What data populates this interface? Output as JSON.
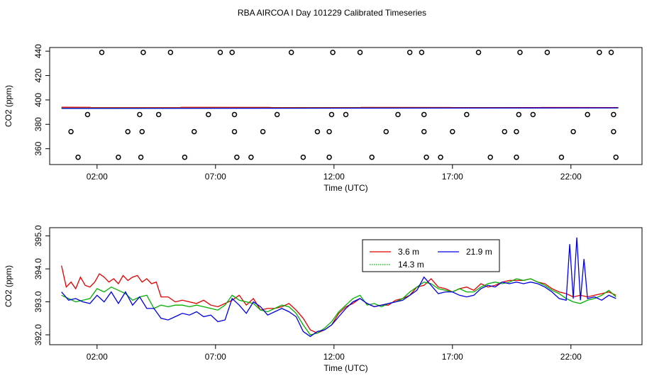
{
  "title": "RBA AIRCOA I  Day 101229  Calibrated Timeseries",
  "colors": {
    "3.6 m": "#e00000",
    "14.3 m": "#00b000",
    "21.9 m": "#0000e0",
    "frame": "#000000"
  },
  "chart_data": [
    {
      "type": "scatter+line",
      "xlabel": "Time (UTC)",
      "ylabel": "CO2 (ppm)",
      "xlim": [
        0.0,
        25.0
      ],
      "ylim": [
        347,
        443
      ],
      "xticks": [
        2,
        7,
        12,
        17,
        22
      ],
      "xtick_labels": [
        "02:00",
        "07:00",
        "12:00",
        "17:00",
        "22:00"
      ],
      "yticks": [
        360,
        380,
        400,
        420,
        440
      ],
      "yticks_labels": [
        "360",
        "380",
        "400",
        "420",
        "440"
      ],
      "calibration_points": [
        {
          "t": 1.2,
          "v": 353
        },
        {
          "t": 0.9,
          "v": 374
        },
        {
          "t": 1.6,
          "v": 388
        },
        {
          "t": 2.2,
          "v": 439
        },
        {
          "t": 2.9,
          "v": 353
        },
        {
          "t": 3.3,
          "v": 374
        },
        {
          "t": 3.8,
          "v": 388
        },
        {
          "t": 3.85,
          "v": 353
        },
        {
          "t": 3.95,
          "v": 439
        },
        {
          "t": 3.9,
          "v": 374
        },
        {
          "t": 4.6,
          "v": 388
        },
        {
          "t": 5.1,
          "v": 439
        },
        {
          "t": 5.7,
          "v": 353
        },
        {
          "t": 6.1,
          "v": 374
        },
        {
          "t": 6.7,
          "v": 388
        },
        {
          "t": 7.2,
          "v": 439
        },
        {
          "t": 7.7,
          "v": 439
        },
        {
          "t": 7.8,
          "v": 388
        },
        {
          "t": 7.8,
          "v": 374
        },
        {
          "t": 7.9,
          "v": 353
        },
        {
          "t": 8.5,
          "v": 353
        },
        {
          "t": 9.0,
          "v": 374
        },
        {
          "t": 9.6,
          "v": 388
        },
        {
          "t": 10.2,
          "v": 439
        },
        {
          "t": 10.7,
          "v": 353
        },
        {
          "t": 11.3,
          "v": 374
        },
        {
          "t": 11.8,
          "v": 374
        },
        {
          "t": 11.8,
          "v": 353
        },
        {
          "t": 11.9,
          "v": 388
        },
        {
          "t": 11.95,
          "v": 439
        },
        {
          "t": 12.5,
          "v": 388
        },
        {
          "t": 13.1,
          "v": 439
        },
        {
          "t": 13.6,
          "v": 353
        },
        {
          "t": 14.2,
          "v": 374
        },
        {
          "t": 14.7,
          "v": 388
        },
        {
          "t": 15.2,
          "v": 439
        },
        {
          "t": 15.7,
          "v": 439
        },
        {
          "t": 15.8,
          "v": 388
        },
        {
          "t": 15.8,
          "v": 374
        },
        {
          "t": 15.9,
          "v": 353
        },
        {
          "t": 16.5,
          "v": 353
        },
        {
          "t": 17.0,
          "v": 374
        },
        {
          "t": 17.6,
          "v": 388
        },
        {
          "t": 18.1,
          "v": 439
        },
        {
          "t": 18.6,
          "v": 353
        },
        {
          "t": 19.2,
          "v": 374
        },
        {
          "t": 19.7,
          "v": 374
        },
        {
          "t": 19.7,
          "v": 353
        },
        {
          "t": 19.8,
          "v": 388
        },
        {
          "t": 19.85,
          "v": 439
        },
        {
          "t": 20.4,
          "v": 388
        },
        {
          "t": 21.0,
          "v": 439
        },
        {
          "t": 21.6,
          "v": 353
        },
        {
          "t": 22.1,
          "v": 374
        },
        {
          "t": 22.7,
          "v": 388
        },
        {
          "t": 23.2,
          "v": 439
        },
        {
          "t": 23.7,
          "v": 439
        },
        {
          "t": 23.8,
          "v": 388
        },
        {
          "t": 23.8,
          "v": 374
        },
        {
          "t": 23.9,
          "v": 353
        }
      ],
      "series": [
        {
          "name": "3.6 m",
          "t": [
            0.5,
            24.0
          ],
          "v": [
            394.0,
            393.8
          ]
        },
        {
          "name": "14.3 m",
          "t": [
            0.5,
            24.0
          ],
          "v": [
            393.2,
            393.5
          ]
        },
        {
          "name": "21.9 m",
          "t": [
            0.5,
            24.0
          ],
          "v": [
            393.0,
            393.5
          ]
        }
      ]
    },
    {
      "type": "line",
      "xlabel": "Time (UTC)",
      "ylabel": "CO2 (ppm)",
      "xlim": [
        0.0,
        25.0
      ],
      "ylim": [
        391.7,
        395.25
      ],
      "xticks": [
        2,
        7,
        12,
        17,
        22
      ],
      "xtick_labels": [
        "02:00",
        "07:00",
        "12:00",
        "17:00",
        "22:00"
      ],
      "yticks": [
        392.0,
        393.0,
        394.0,
        395.0
      ],
      "yticks_labels": [
        "392.0",
        "393.0",
        "394.0",
        "395.0"
      ],
      "legend": {
        "position": "top-center",
        "entries": [
          "3.6 m",
          "21.9 m",
          "14.3 m"
        ]
      },
      "series": [
        {
          "name": "3.6 m",
          "t": [
            0.5,
            0.7,
            0.9,
            1.1,
            1.3,
            1.5,
            1.7,
            1.9,
            2.1,
            2.3,
            2.5,
            2.7,
            2.9,
            3.1,
            3.3,
            3.5,
            3.7,
            3.9,
            4.1,
            4.3,
            4.5,
            4.7,
            5.0,
            5.3,
            5.6,
            5.9,
            6.2,
            6.5,
            6.8,
            7.1,
            7.4,
            7.7,
            8.0,
            8.3,
            8.6,
            8.9,
            9.2,
            9.5,
            9.8,
            10.1,
            10.4,
            10.7,
            11.0,
            11.3,
            11.6,
            11.9,
            12.2,
            12.5,
            12.8,
            13.1,
            13.4,
            13.7,
            14.0,
            14.3,
            14.6,
            14.9,
            15.2,
            15.5,
            15.8,
            16.1,
            16.4,
            16.7,
            17.0,
            17.3,
            17.6,
            17.9,
            18.2,
            18.5,
            18.8,
            19.1,
            19.4,
            19.7,
            20.0,
            20.3,
            20.6,
            20.9,
            21.2,
            21.5,
            21.8,
            22.1,
            22.4,
            22.7,
            23.0,
            23.3,
            23.6,
            23.9
          ],
          "v": [
            394.1,
            393.45,
            393.6,
            393.4,
            393.75,
            393.5,
            393.45,
            393.6,
            393.85,
            393.75,
            393.6,
            393.7,
            393.55,
            393.8,
            393.65,
            393.75,
            393.8,
            393.6,
            393.7,
            393.55,
            393.6,
            393.15,
            393.15,
            393.0,
            393.05,
            393.0,
            392.95,
            393.05,
            392.9,
            392.85,
            392.95,
            393.05,
            393.2,
            392.9,
            393.1,
            392.75,
            392.8,
            392.8,
            392.85,
            392.95,
            392.75,
            392.5,
            392.15,
            392.05,
            392.15,
            392.3,
            392.65,
            392.85,
            392.95,
            393.1,
            392.95,
            392.85,
            392.9,
            392.9,
            393.05,
            393.1,
            393.2,
            393.45,
            393.5,
            393.7,
            393.45,
            393.4,
            393.3,
            393.4,
            393.45,
            393.35,
            393.55,
            393.45,
            393.5,
            393.6,
            393.65,
            393.65,
            393.65,
            393.7,
            393.6,
            393.55,
            393.4,
            393.3,
            393.25,
            393.15,
            393.2,
            393.15,
            393.2,
            393.25,
            393.3,
            393.2
          ]
        },
        {
          "name": "14.3 m",
          "t": [
            0.5,
            0.8,
            1.1,
            1.4,
            1.7,
            2.0,
            2.3,
            2.6,
            2.9,
            3.2,
            3.5,
            3.8,
            4.1,
            4.4,
            4.7,
            5.0,
            5.3,
            5.6,
            5.9,
            6.2,
            6.5,
            6.8,
            7.1,
            7.4,
            7.7,
            8.0,
            8.3,
            8.6,
            8.9,
            9.2,
            9.5,
            9.8,
            10.1,
            10.4,
            10.7,
            11.0,
            11.3,
            11.6,
            11.9,
            12.2,
            12.5,
            12.8,
            13.1,
            13.4,
            13.7,
            14.0,
            14.3,
            14.6,
            14.9,
            15.2,
            15.5,
            15.8,
            16.1,
            16.4,
            16.7,
            17.0,
            17.3,
            17.6,
            17.9,
            18.2,
            18.5,
            18.8,
            19.1,
            19.4,
            19.7,
            20.0,
            20.3,
            20.6,
            20.9,
            21.2,
            21.5,
            21.8,
            22.1,
            22.4,
            22.7,
            23.0,
            23.3,
            23.6,
            23.9
          ],
          "v": [
            393.2,
            393.1,
            393.0,
            393.05,
            393.1,
            393.4,
            393.3,
            393.45,
            393.35,
            393.25,
            393.05,
            393.15,
            393.2,
            392.8,
            392.9,
            392.85,
            392.9,
            392.9,
            392.85,
            392.9,
            392.85,
            392.8,
            392.75,
            392.9,
            393.2,
            393.05,
            393.0,
            392.95,
            392.75,
            392.7,
            392.8,
            392.9,
            392.85,
            392.65,
            392.3,
            392.0,
            392.05,
            392.2,
            392.4,
            392.7,
            392.9,
            393.1,
            393.2,
            392.9,
            392.95,
            392.85,
            392.95,
            393.0,
            393.1,
            393.3,
            393.45,
            393.6,
            393.55,
            393.4,
            393.35,
            393.3,
            393.4,
            393.3,
            393.3,
            393.45,
            393.55,
            393.6,
            393.55,
            393.6,
            393.7,
            393.65,
            393.7,
            393.6,
            393.5,
            393.35,
            393.25,
            393.1,
            393.0,
            392.95,
            393.05,
            393.1,
            393.2,
            393.35,
            393.15
          ]
        },
        {
          "name": "21.9 m",
          "t": [
            0.5,
            0.8,
            1.1,
            1.4,
            1.7,
            2.0,
            2.3,
            2.6,
            2.9,
            3.2,
            3.5,
            3.8,
            4.1,
            4.4,
            4.7,
            5.0,
            5.3,
            5.6,
            5.9,
            6.2,
            6.5,
            6.8,
            7.1,
            7.4,
            7.7,
            8.0,
            8.3,
            8.6,
            8.9,
            9.2,
            9.5,
            9.8,
            10.1,
            10.4,
            10.7,
            11.0,
            11.3,
            11.6,
            11.9,
            12.2,
            12.5,
            12.8,
            13.1,
            13.4,
            13.7,
            14.0,
            14.3,
            14.6,
            14.9,
            15.2,
            15.5,
            15.8,
            16.1,
            16.4,
            16.7,
            17.0,
            17.3,
            17.6,
            17.9,
            18.2,
            18.5,
            18.8,
            19.1,
            19.4,
            19.7,
            20.0,
            20.3,
            20.6,
            20.9,
            21.2,
            21.5,
            21.8,
            21.95,
            22.1,
            22.25,
            22.4,
            22.55,
            22.7,
            23.0,
            23.3,
            23.6,
            23.9
          ],
          "v": [
            393.3,
            393.05,
            393.1,
            393.0,
            392.95,
            393.2,
            393.0,
            393.3,
            392.95,
            393.3,
            392.9,
            393.15,
            392.8,
            392.8,
            392.5,
            392.45,
            392.55,
            392.65,
            392.6,
            392.7,
            392.55,
            392.6,
            392.4,
            392.45,
            393.1,
            392.9,
            392.65,
            393.0,
            392.85,
            392.6,
            392.7,
            392.8,
            392.7,
            392.55,
            392.1,
            391.95,
            392.1,
            392.15,
            392.3,
            392.55,
            392.8,
            393.0,
            393.1,
            392.95,
            392.85,
            392.9,
            392.95,
            393.0,
            393.05,
            393.2,
            393.35,
            393.75,
            393.5,
            393.25,
            393.3,
            393.3,
            393.2,
            393.15,
            393.2,
            393.4,
            393.5,
            393.45,
            393.6,
            393.55,
            393.6,
            393.55,
            393.6,
            393.55,
            393.45,
            393.3,
            393.1,
            393.05,
            394.75,
            393.1,
            394.95,
            393.05,
            394.3,
            393.1,
            393.15,
            393.05,
            393.2,
            393.1
          ]
        }
      ]
    }
  ]
}
